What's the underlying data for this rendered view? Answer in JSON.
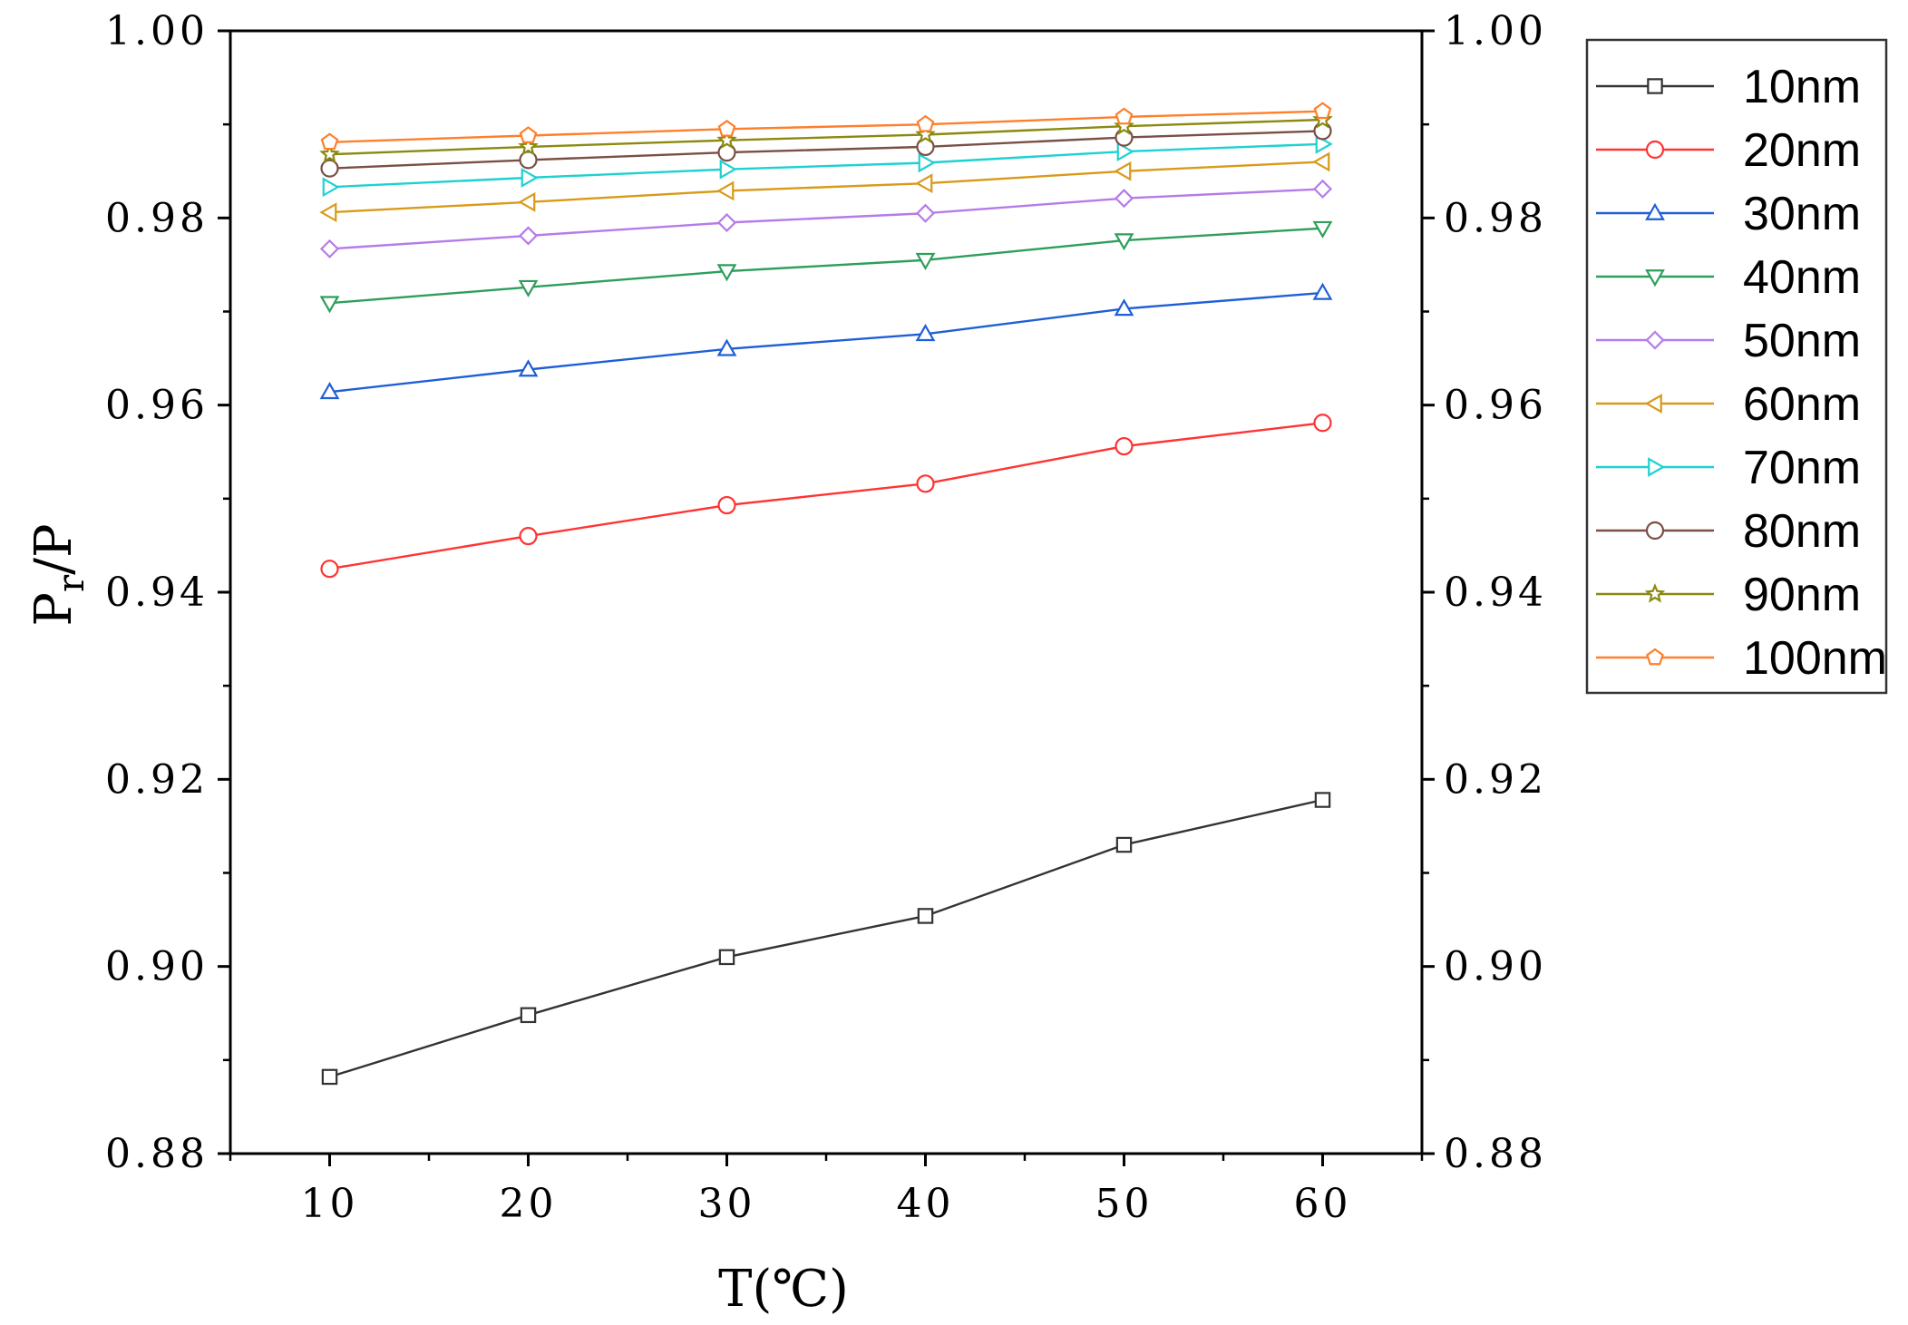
{
  "chart_data": {
    "type": "line",
    "title": "",
    "xlabel": "T(℃)",
    "ylabel": {
      "main": "P",
      "sub": "r",
      "tail": "/P"
    },
    "x": [
      10,
      20,
      30,
      40,
      50,
      60
    ],
    "xlim": [
      5,
      65
    ],
    "ylim": [
      0.88,
      1.0
    ],
    "xticks": [
      10,
      20,
      30,
      40,
      50,
      60
    ],
    "xtick_labels": [
      "10",
      "20",
      "30",
      "40",
      "50",
      "60"
    ],
    "yticks": [
      0.88,
      0.9,
      0.92,
      0.94,
      0.96,
      0.98,
      1.0
    ],
    "ytick_labels": [
      "0.88",
      "0.90",
      "0.92",
      "0.94",
      "0.96",
      "0.98",
      "1.00"
    ],
    "right_axis_mirror": true,
    "grid": false,
    "legend_position": "outside-right-top",
    "series": [
      {
        "name": "10nm",
        "color": "#333333",
        "marker": "square",
        "values": [
          0.8882,
          0.8948,
          0.901,
          0.9054,
          0.913,
          0.9178
        ]
      },
      {
        "name": "20nm",
        "color": "#ff3333",
        "marker": "circle",
        "values": [
          0.9425,
          0.946,
          0.9493,
          0.9516,
          0.9556,
          0.9581
        ]
      },
      {
        "name": "30nm",
        "color": "#1f5fd6",
        "marker": "triangle-up",
        "values": [
          0.9614,
          0.9638,
          0.966,
          0.9676,
          0.9703,
          0.972
        ]
      },
      {
        "name": "40nm",
        "color": "#2e9e5b",
        "marker": "triangle-down",
        "values": [
          0.9709,
          0.9726,
          0.9743,
          0.9755,
          0.9776,
          0.9789
        ]
      },
      {
        "name": "50nm",
        "color": "#b57be8",
        "marker": "diamond",
        "values": [
          0.9767,
          0.9781,
          0.9795,
          0.9805,
          0.9821,
          0.9831
        ]
      },
      {
        "name": "60nm",
        "color": "#d99a1a",
        "marker": "triangle-left",
        "values": [
          0.9806,
          0.9817,
          0.9829,
          0.9837,
          0.985,
          0.986
        ]
      },
      {
        "name": "70nm",
        "color": "#1ed1d1",
        "marker": "triangle-right",
        "values": [
          0.9833,
          0.9843,
          0.9852,
          0.9859,
          0.9871,
          0.9879
        ]
      },
      {
        "name": "80nm",
        "color": "#7a4f45",
        "marker": "circle",
        "values": [
          0.9853,
          0.9862,
          0.987,
          0.9876,
          0.9886,
          0.9893
        ]
      },
      {
        "name": "90nm",
        "color": "#8a8a10",
        "marker": "star",
        "values": [
          0.9868,
          0.9876,
          0.9883,
          0.9889,
          0.9898,
          0.9905
        ]
      },
      {
        "name": "100nm",
        "color": "#ff7f2a",
        "marker": "pentagon",
        "values": [
          0.9881,
          0.9888,
          0.9895,
          0.99,
          0.9908,
          0.9914
        ]
      }
    ]
  }
}
